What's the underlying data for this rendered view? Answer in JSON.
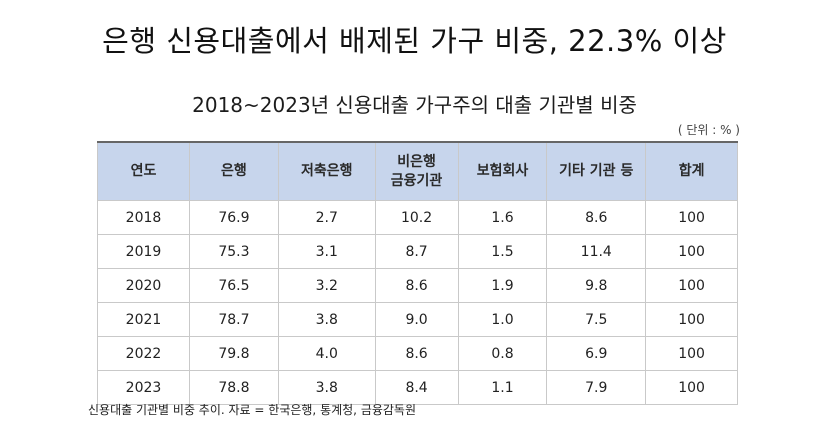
{
  "headline": "은행 신용대출에서 배제된 가구 비중, 22.3% 이상",
  "table": {
    "title": "2018~2023년 신용대출 가구주의 대출 기관별 비중",
    "unit": "( 단위 : % )",
    "headers": [
      {
        "line1": "연도",
        "line2": ""
      },
      {
        "line1": "은행",
        "line2": ""
      },
      {
        "line1": "저축은행",
        "line2": ""
      },
      {
        "line1": "비은행",
        "line2": "금융기관"
      },
      {
        "line1": "보험회사",
        "line2": ""
      },
      {
        "line1": "기타 기관 등",
        "line2": ""
      },
      {
        "line1": "합계",
        "line2": ""
      }
    ],
    "rows": [
      [
        "2018",
        "76.9",
        "2.7",
        "10.2",
        "1.6",
        "8.6",
        "100"
      ],
      [
        "2019",
        "75.3",
        "3.1",
        "8.7",
        "1.5",
        "11.4",
        "100"
      ],
      [
        "2020",
        "76.5",
        "3.2",
        "8.6",
        "1.9",
        "9.8",
        "100"
      ],
      [
        "2021",
        "78.7",
        "3.8",
        "9.0",
        "1.0",
        "7.5",
        "100"
      ],
      [
        "2022",
        "79.8",
        "4.0",
        "8.6",
        "0.8",
        "6.9",
        "100"
      ],
      [
        "2023",
        "78.8",
        "3.8",
        "8.4",
        "1.1",
        "7.9",
        "100"
      ]
    ]
  },
  "caption": "신용대출 기관별 비중 추이. 자료 = 한국은행, 통계청, 금융감독원",
  "colors": {
    "header_background": "#c7d5ec",
    "grid_line": "#c9c9c9",
    "header_top_rule": "#666666"
  }
}
